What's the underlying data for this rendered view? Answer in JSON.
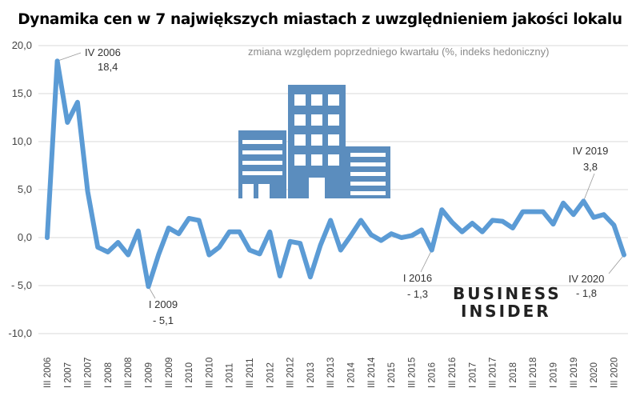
{
  "chart_data": {
    "type": "line",
    "title": "Dynamika cen w 7 największych miastach z uwzględnieniem jakości lokalu",
    "subtitle": "zmiana względem poprzedniego kwartału (%, indeks hedoniczny)",
    "xlabel": "",
    "ylabel": "",
    "ylim": [
      -10,
      20
    ],
    "yticks": [
      "-10,0",
      "- 5,0",
      "0,0",
      "5,0",
      "10,0",
      "15,0",
      "20,0"
    ],
    "grid": true,
    "line_color": "#5B9BD5",
    "x_tick_labels": [
      "III 2006",
      "I 2007",
      "III 2007",
      "I 2008",
      "III 2008",
      "I 2009",
      "III 2009",
      "I 2010",
      "III 2010",
      "I 2011",
      "III 2011",
      "I 2012",
      "III 2012",
      "I 2013",
      "III 2013",
      "I 2014",
      "III 2014",
      "I 2015",
      "III 2015",
      "I 2016",
      "III 2016",
      "I 2017",
      "III 2017",
      "I 2018",
      "III 2018",
      "I 2019",
      "III 2019",
      "I 2020",
      "III 2020"
    ],
    "x": [
      "III 2006",
      "IV 2006",
      "I 2007",
      "II 2007",
      "III 2007",
      "IV 2007",
      "I 2008",
      "II 2008",
      "III 2008",
      "IV 2008",
      "I 2009",
      "II 2009",
      "III 2009",
      "IV 2009",
      "I 2010",
      "II 2010",
      "III 2010",
      "IV 2010",
      "I 2011",
      "II 2011",
      "III 2011",
      "IV 2011",
      "I 2012",
      "II 2012",
      "III 2012",
      "IV 2012",
      "I 2013",
      "II 2013",
      "III 2013",
      "IV 2013",
      "I 2014",
      "II 2014",
      "III 2014",
      "IV 2014",
      "I 2015",
      "II 2015",
      "III 2015",
      "IV 2015",
      "I 2016",
      "II 2016",
      "III 2016",
      "IV 2016",
      "I 2017",
      "II 2017",
      "III 2017",
      "IV 2017",
      "I 2018",
      "II 2018",
      "III 2018",
      "IV 2018",
      "I 2019",
      "II 2019",
      "III 2019",
      "IV 2019",
      "I 2020",
      "II 2020",
      "III 2020",
      "IV 2020"
    ],
    "values": [
      0.0,
      18.4,
      12.0,
      14.1,
      4.8,
      -1.0,
      -1.5,
      -0.5,
      -1.8,
      0.7,
      -5.1,
      -1.8,
      1.0,
      0.4,
      2.0,
      1.8,
      -1.8,
      -1.0,
      0.6,
      0.6,
      -1.3,
      -1.7,
      0.6,
      -4.0,
      -0.4,
      -0.6,
      -4.1,
      -0.8,
      1.8,
      -1.3,
      0.2,
      1.8,
      0.3,
      -0.3,
      0.4,
      0.0,
      0.2,
      0.8,
      -1.3,
      2.9,
      1.6,
      0.6,
      1.5,
      0.6,
      1.8,
      1.7,
      1.0,
      2.7,
      2.7,
      2.7,
      1.4,
      3.6,
      2.4,
      3.8,
      2.1,
      2.4,
      1.3,
      -1.8
    ],
    "annotations": [
      {
        "index": 1,
        "label": "IV 2006",
        "value": "18,4"
      },
      {
        "index": 10,
        "label": "I 2009",
        "value": "- 5,1"
      },
      {
        "index": 38,
        "label": "I 2016",
        "value": "- 1,3"
      },
      {
        "index": 53,
        "label": "IV 2019",
        "value": "3,8"
      },
      {
        "index": 57,
        "label": "IV 2020",
        "value": "- 1,8"
      }
    ]
  },
  "logo": {
    "line1": "BUSINESS",
    "line2": "INSIDER"
  },
  "icons": {
    "building": "building-icon"
  }
}
